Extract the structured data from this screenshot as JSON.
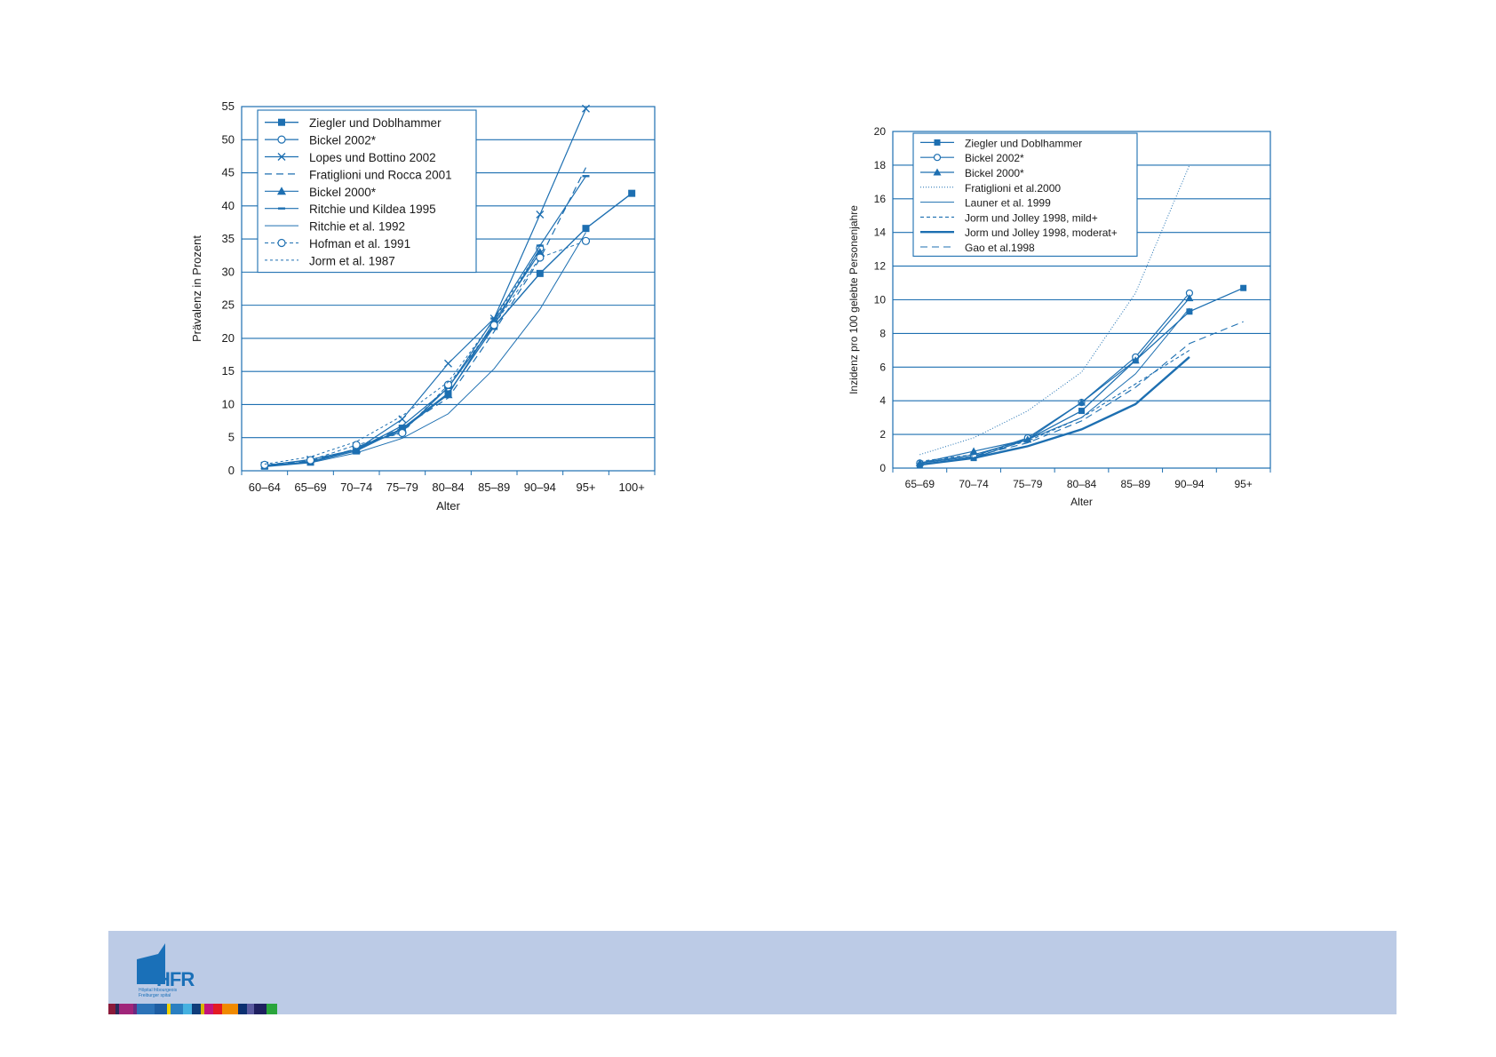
{
  "chart_data": [
    {
      "type": "line",
      "xlabel": "Alter",
      "ylabel": "Prävalenz in Prozent",
      "categories": [
        "60–64",
        "65–69",
        "70–74",
        "75–79",
        "80–84",
        "85–89",
        "90–94",
        "95+",
        "100+"
      ],
      "ylim": [
        0,
        55
      ],
      "yticks": [
        0,
        5,
        10,
        15,
        20,
        25,
        30,
        35,
        40,
        45,
        50,
        55
      ],
      "grid": true,
      "legend_position": "top-left",
      "series": [
        {
          "name": "Ziegler und Doblhammer",
          "marker": "square",
          "dash": "solid",
          "width": 1.4,
          "values": [
            0.7,
            1.3,
            3.0,
            6.4,
            11.7,
            21.8,
            29.8,
            36.6,
            41.9
          ]
        },
        {
          "name": "Bickel 2002*",
          "marker": "circle",
          "dash": "solid",
          "width": 1.2,
          "values": [
            null,
            null,
            3.6,
            5.9,
            12.6,
            22.0,
            33.6,
            null,
            null
          ]
        },
        {
          "name": "Lopes und Bottino 2002",
          "marker": "x",
          "dash": "solid",
          "width": 1.2,
          "values": [
            0.8,
            1.7,
            3.2,
            7.8,
            16.2,
            23.0,
            38.7,
            54.7,
            null
          ]
        },
        {
          "name": "Fratiglioni und Rocca 2001",
          "marker": "none",
          "dash": "8,5",
          "width": 1.2,
          "values": [
            0.8,
            1.5,
            3.3,
            6.5,
            11.0,
            21.0,
            32.0,
            45.8,
            null
          ]
        },
        {
          "name": "Bickel 2000*",
          "marker": "triangle",
          "dash": "solid",
          "width": 1.2,
          "values": [
            null,
            null,
            3.2,
            6.2,
            11.5,
            22.5,
            33.0,
            null,
            null
          ]
        },
        {
          "name": "Ritchie und Kildea 1995",
          "marker": "dash",
          "dash": "solid",
          "width": 1.2,
          "values": [
            0.7,
            1.4,
            3.2,
            6.8,
            12.5,
            23.0,
            34.0,
            44.5,
            null
          ]
        },
        {
          "name": "Ritchie et al. 1992",
          "marker": "none",
          "dash": "solid",
          "width": 1.0,
          "values": [
            0.6,
            1.2,
            2.7,
            4.9,
            8.6,
            15.4,
            24.4,
            36.0,
            null
          ]
        },
        {
          "name": "Hofman et al. 1991",
          "marker": "circle",
          "dash": "4,3",
          "width": 1.0,
          "values": [
            0.9,
            1.6,
            3.9,
            5.7,
            13.0,
            22.0,
            32.2,
            34.7,
            null
          ]
        },
        {
          "name": "Jorm et al. 1987",
          "marker": "none",
          "dash": "3,3",
          "width": 1.0,
          "values": [
            1.0,
            2.1,
            4.4,
            8.3,
            13.4,
            22.8,
            33.5,
            null,
            null
          ]
        }
      ]
    },
    {
      "type": "line",
      "xlabel": "Alter",
      "ylabel": "Inzidenz pro 100 gelebte Personenjahre",
      "categories": [
        "65–69",
        "70–74",
        "75–79",
        "80–84",
        "85–89",
        "90–94",
        "95+"
      ],
      "ylim": [
        0,
        20
      ],
      "yticks": [
        0,
        2,
        4,
        6,
        8,
        10,
        12,
        14,
        16,
        18,
        20
      ],
      "grid": true,
      "legend_position": "top-left",
      "series": [
        {
          "name": "Ziegler und Doblhammer",
          "marker": "square",
          "dash": "solid",
          "width": 1.3,
          "values": [
            0.2,
            0.6,
            1.7,
            3.4,
            6.4,
            9.3,
            10.7
          ]
        },
        {
          "name": "Bickel 2002*",
          "marker": "circle",
          "dash": "solid",
          "width": 1.2,
          "values": [
            0.3,
            0.7,
            1.8,
            3.9,
            6.6,
            10.4,
            null
          ]
        },
        {
          "name": "Bickel 2000*",
          "marker": "triangle",
          "dash": "solid",
          "width": 1.2,
          "values": [
            0.3,
            1.0,
            1.7,
            3.9,
            6.4,
            10.1,
            null
          ]
        },
        {
          "name": "Fratiglioni et al.2000",
          "marker": "none",
          "dash": "1,2",
          "width": 1.0,
          "values": [
            0.8,
            1.8,
            3.4,
            5.7,
            10.4,
            18.0,
            null
          ]
        },
        {
          "name": "Launer et al. 1999",
          "marker": "none",
          "dash": "solid",
          "width": 1.0,
          "values": [
            0.3,
            0.8,
            1.7,
            3.0,
            5.6,
            9.5,
            null
          ]
        },
        {
          "name": "Jorm und Jolley 1998, mild+",
          "marker": "none",
          "dash": "4,3",
          "width": 1.1,
          "values": [
            0.4,
            0.8,
            1.6,
            3.0,
            5.0,
            7.0,
            null
          ]
        },
        {
          "name": "Jorm und Jolley 1998, moderat+",
          "marker": "none",
          "dash": "solid",
          "width": 2.4,
          "values": [
            0.2,
            0.6,
            1.3,
            2.3,
            3.8,
            6.6,
            null
          ]
        },
        {
          "name": "Gao et al.1998",
          "marker": "none",
          "dash": "8,5",
          "width": 1.1,
          "values": [
            0.3,
            0.7,
            1.5,
            2.8,
            4.8,
            7.4,
            8.7
          ]
        }
      ]
    }
  ],
  "footer": {
    "logo_text": "HFR",
    "logo_subtext": "Hôpital fribourgeois Freiburger spital",
    "stripe_colors": [
      "#8b1a3a",
      "#2a2a5a",
      "#a0257a",
      "#6d2a7f",
      "#2c73b8",
      "#1e5ea3",
      "#f2d200",
      "#2a7fc1",
      "#45b1e0",
      "#0f3d7a",
      "#d8b400",
      "#c4147c",
      "#e31b23",
      "#f08a00",
      "#0b3070",
      "#5a5aa0",
      "#1f2060",
      "#2aa53c"
    ]
  }
}
